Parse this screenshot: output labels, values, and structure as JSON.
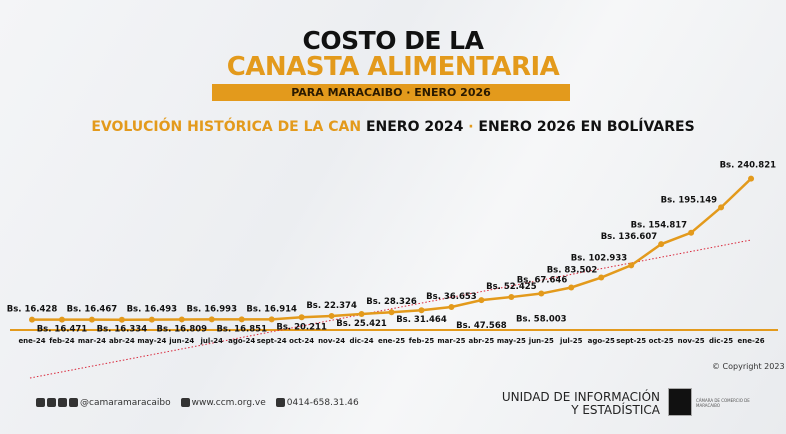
{
  "header": {
    "title_line1": "COSTO DE LA",
    "title_line2": "CANASTA ALIMENTARIA",
    "band": "PARA MARACAIBO ·  ENERO 2026"
  },
  "subtitle": {
    "part1": "EVOLUCIÓN HISTÓRICA DE LA CAN",
    "part2": " ENERO 2024",
    "sep": " · ",
    "part3": " ENERO 2026 EN BOLÍVARES"
  },
  "chart_data": {
    "type": "line",
    "title": "EVOLUCIÓN HISTÓRICA DE LA CAN ENERO 2024 · ENERO 2026 EN BOLÍVARES",
    "ylim": [
      0,
      245000
    ],
    "categories": [
      "ene-24",
      "feb-24",
      "mar-24",
      "abr-24",
      "may-24",
      "jun-24",
      "jul-24",
      "ago-24",
      "sept-24",
      "oct-24",
      "nov-24",
      "dic-24",
      "ene-25",
      "feb-25",
      "mar-25",
      "abr-25",
      "may-25",
      "jun-25",
      "jul-25",
      "ago-25",
      "sept-25",
      "oct-25",
      "nov-25",
      "dic-25",
      "ene-26"
    ],
    "values": [
      16428,
      16471,
      16467,
      16334,
      16493,
      16809,
      16993,
      16851,
      16914,
      20211,
      22374,
      25421,
      28326,
      31464,
      36653,
      47568,
      52425,
      58003,
      67646,
      83502,
      102933,
      136607,
      154817,
      195149,
      240821
    ],
    "labels": [
      "Bs. 16.428",
      "Bs. 16.471",
      "Bs. 16.467",
      "Bs. 16.334",
      "Bs. 16.493",
      "Bs. 16.809",
      "Bs. 16.993",
      "Bs. 16.851",
      "Bs. 16.914",
      "Bs. 20.211",
      "Bs. 22.374",
      "Bs. 25.421",
      "Bs. 28.326",
      "Bs. 31.464",
      "Bs. 36.653",
      "Bs. 47.568",
      "Bs. 52.425",
      "Bs. 58.003",
      "Bs. 67.646",
      "Bs. 83.502",
      "Bs. 102.933",
      "Bs. 136.607",
      "Bs. 154.817",
      "Bs. 195.149",
      "Bs. 240.821"
    ],
    "trendline": "linear dotted",
    "colors": {
      "line": "#e39a1c",
      "trend": "#d9263a"
    }
  },
  "footer": {
    "social": "@camaramaracaibo",
    "web": "www.ccm.org.ve",
    "phone": "0414-658.31.46",
    "copyright": "© Copyright 2023",
    "unit1": "UNIDAD DE INFORMACIÓN",
    "unit2": "Y ESTADÍSTICA",
    "logo_text": "CÁMARA DE COMERCIO DE MARACAIBO"
  }
}
